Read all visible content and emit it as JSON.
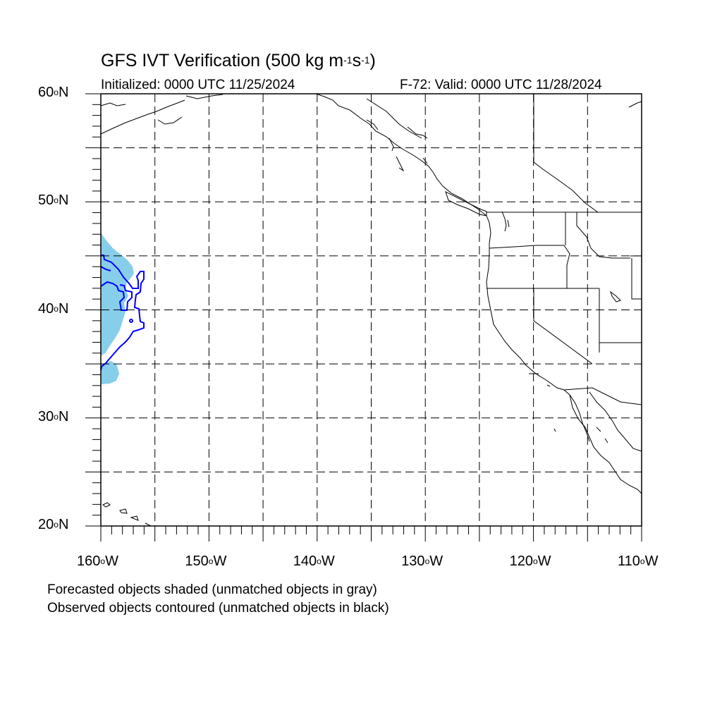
{
  "title": {
    "main": "GFS IVT Verification (500 kg m",
    "exp1": "-1",
    "mid": "s",
    "exp2": "-1",
    "close": ")"
  },
  "subtitle": {
    "left": "Initialized: 0000 UTC 11/25/2024",
    "right": "F-72: Valid: 0000 UTC 11/28/2024"
  },
  "y_axis_labels": [
    {
      "num": "60",
      "deg": "o",
      "hem": "N"
    },
    {
      "num": "50",
      "deg": "o",
      "hem": "N"
    },
    {
      "num": "40",
      "deg": "o",
      "hem": "N"
    },
    {
      "num": "30",
      "deg": "o",
      "hem": "N"
    },
    {
      "num": "20",
      "deg": "o",
      "hem": "N"
    }
  ],
  "x_axis_labels": [
    {
      "num": "160",
      "deg": "o",
      "hem": "W"
    },
    {
      "num": "150",
      "deg": "o",
      "hem": "W"
    },
    {
      "num": "140",
      "deg": "o",
      "hem": "W"
    },
    {
      "num": "130",
      "deg": "o",
      "hem": "W"
    },
    {
      "num": "120",
      "deg": "o",
      "hem": "W"
    },
    {
      "num": "110",
      "deg": "o",
      "hem": "W"
    }
  ],
  "captions": {
    "line1": "Forecasted objects shaded (unmatched objects in gray)",
    "line2": "Observed objects contoured (unmatched objects in black)"
  },
  "map": {
    "lon_range": [
      -160,
      -110
    ],
    "lat_range": [
      20,
      60
    ],
    "grid_step_deg": 5,
    "forecast_object_color": "#87ceeb",
    "observed_object_color": "#0000ff",
    "coastline_color": "#000000",
    "grid_color": "#000000"
  }
}
